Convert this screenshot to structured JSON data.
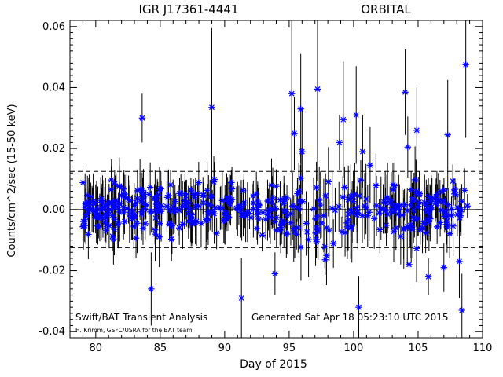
{
  "chart_data": {
    "type": "scatter",
    "title": "IGR J17361-4441",
    "subtitle": "ORBITAL",
    "xlabel": "Day of 2015",
    "ylabel": "Counts/cm^2/sec (15-50 keV)",
    "xlim": [
      78,
      110
    ],
    "ylim": [
      -0.042,
      0.062
    ],
    "x_ticks": [
      80,
      85,
      90,
      95,
      100,
      105,
      110
    ],
    "y_ticks": [
      -0.04,
      -0.02,
      0.0,
      0.02,
      0.04,
      0.06
    ],
    "x_tick_labels": [
      "80",
      "85",
      "90",
      "95",
      "100",
      "105",
      "110"
    ],
    "y_tick_labels": [
      "-0.04",
      "-0.02",
      "0.00",
      "0.02",
      "0.04",
      "0.06"
    ],
    "reference_lines": [
      {
        "style": "solid",
        "y": 0.0
      },
      {
        "style": "dashed",
        "y": 0.0125
      },
      {
        "style": "dashed",
        "y": -0.0125
      }
    ],
    "grid": false,
    "marker": "asterisk",
    "marker_color": "#0000ff",
    "errorbar_color": "#000000",
    "footer_left": "Swift/BAT Transient Analysis",
    "footer_left_small": "H. Krimm, GSFC/USRA for the BAT team",
    "footer_right": "Generated Sat Apr 18 05:23:10 UTC 2015",
    "notable_points": [
      {
        "x": 83.6,
        "y": 0.03,
        "err": 0.008
      },
      {
        "x": 84.3,
        "y": -0.026,
        "err": 0.012
      },
      {
        "x": 89.0,
        "y": 0.0335,
        "err": 0.026
      },
      {
        "x": 91.3,
        "y": -0.029,
        "err": 0.013
      },
      {
        "x": 93.9,
        "y": -0.021,
        "err": 0.007
      },
      {
        "x": 95.2,
        "y": 0.038,
        "err": 0.026
      },
      {
        "x": 95.4,
        "y": 0.025,
        "err": 0.012
      },
      {
        "x": 95.9,
        "y": 0.033,
        "err": 0.018
      },
      {
        "x": 96.0,
        "y": 0.019,
        "err": 0.014
      },
      {
        "x": 97.2,
        "y": 0.0395,
        "err": 0.03
      },
      {
        "x": 98.9,
        "y": 0.022,
        "err": 0.009
      },
      {
        "x": 99.2,
        "y": 0.0295,
        "err": 0.019
      },
      {
        "x": 100.2,
        "y": 0.031,
        "err": 0.016
      },
      {
        "x": 100.4,
        "y": -0.032,
        "err": 0.01
      },
      {
        "x": 100.7,
        "y": 0.019,
        "err": 0.012
      },
      {
        "x": 104.0,
        "y": 0.0385,
        "err": 0.014
      },
      {
        "x": 104.2,
        "y": 0.0205,
        "err": 0.01
      },
      {
        "x": 104.3,
        "y": -0.018,
        "err": 0.008
      },
      {
        "x": 104.9,
        "y": 0.026,
        "err": 0.014
      },
      {
        "x": 105.8,
        "y": -0.022,
        "err": 0.006
      },
      {
        "x": 107.0,
        "y": -0.019,
        "err": 0.008
      },
      {
        "x": 107.3,
        "y": 0.0245,
        "err": 0.018
      },
      {
        "x": 108.2,
        "y": -0.017,
        "err": 0.012
      },
      {
        "x": 108.4,
        "y": -0.033,
        "err": 0.012
      },
      {
        "x": 108.7,
        "y": 0.0475,
        "err": 0.024
      }
    ],
    "note": "Dense cluster of ~500 additional orbital points between day 79 and 109 scatter around 0 with errors ~0.005-0.012."
  }
}
